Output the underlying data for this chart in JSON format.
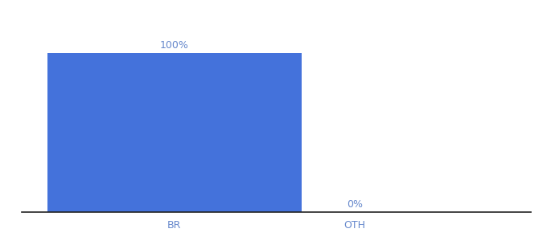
{
  "categories": [
    "BR",
    "OTH"
  ],
  "values": [
    100,
    0
  ],
  "bar_color": "#4472DB",
  "label_color": "#6688cc",
  "label_fontsize": 9,
  "tick_fontsize": 9,
  "ylim": [
    0,
    115
  ],
  "bar_width": 0.55,
  "background_color": "#ffffff",
  "bottom_spine_color": "#222222",
  "label_values": [
    "100%",
    "0%"
  ],
  "x_positions": [
    0.33,
    0.72
  ]
}
